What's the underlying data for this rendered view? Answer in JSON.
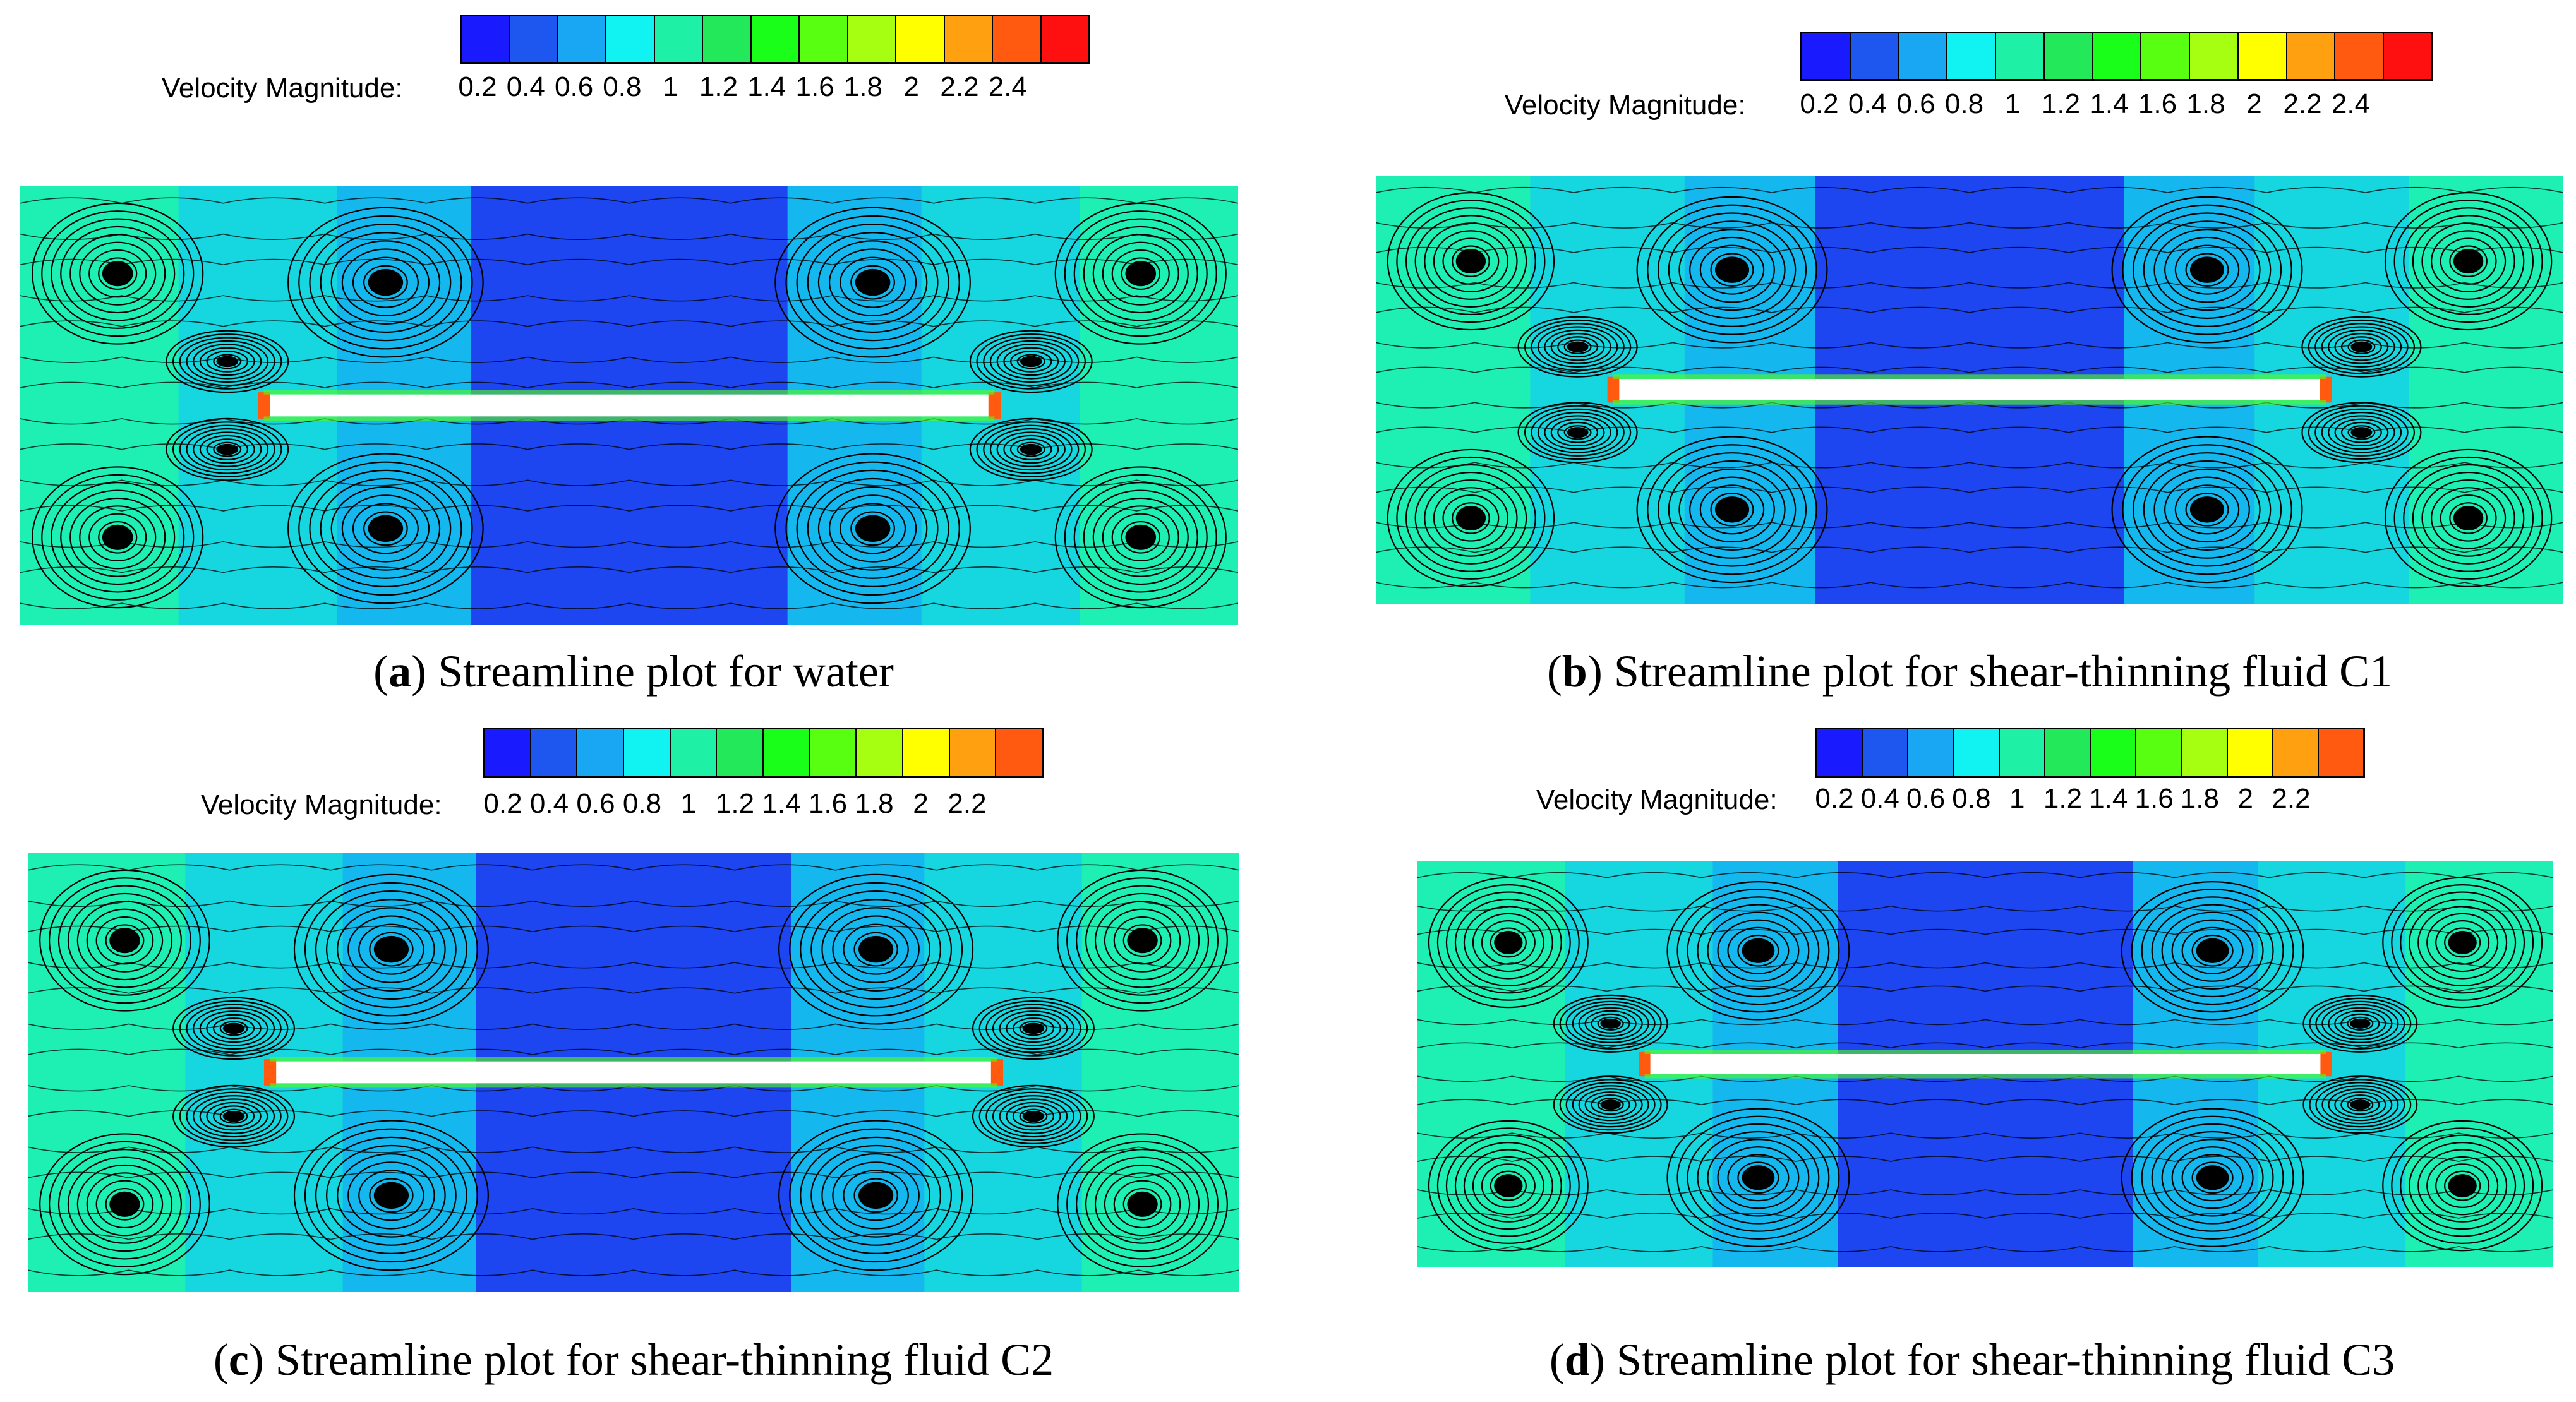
{
  "colors": [
    "#1a1aff",
    "#1e56f0",
    "#19a6f2",
    "#11f2f2",
    "#1ef0a6",
    "#22e85a",
    "#1aff1a",
    "#59ff10",
    "#a6ff10",
    "#ffff00",
    "#ffa010",
    "#ff5a10",
    "#ff1010"
  ],
  "panels": [
    {
      "id": "a",
      "letter": "a",
      "caption": "Streamline plot for water",
      "legend_label": "Velocity Magnitude:",
      "ticks": [
        "0.2",
        "0.4",
        "0.6",
        "0.8",
        "1",
        "1.2",
        "1.4",
        "1.6",
        "1.8",
        "2",
        "2.2",
        "2.4"
      ]
    },
    {
      "id": "b",
      "letter": "b",
      "caption": "Streamline plot for shear-thinning fluid C1",
      "legend_label": "Velocity Magnitude:",
      "ticks": [
        "0.2",
        "0.4",
        "0.6",
        "0.8",
        "1",
        "1.2",
        "1.4",
        "1.6",
        "1.8",
        "2",
        "2.2",
        "2.4"
      ]
    },
    {
      "id": "c",
      "letter": "c",
      "caption": "Streamline plot for shear-thinning fluid C2",
      "legend_label": "Velocity Magnitude:",
      "ticks": [
        "0.2",
        "0.4",
        "0.6",
        "0.8",
        "1",
        "1.2",
        "1.4",
        "1.6",
        "1.8",
        "2",
        "2.2"
      ]
    },
    {
      "id": "d",
      "letter": "d",
      "caption": "Streamline plot for shear-thinning fluid C3",
      "legend_label": "Velocity Magnitude:",
      "ticks": [
        "0.2",
        "0.4",
        "0.6",
        "0.8",
        "1",
        "1.2",
        "1.4",
        "1.6",
        "1.8",
        "2",
        "2.2"
      ]
    }
  ]
}
